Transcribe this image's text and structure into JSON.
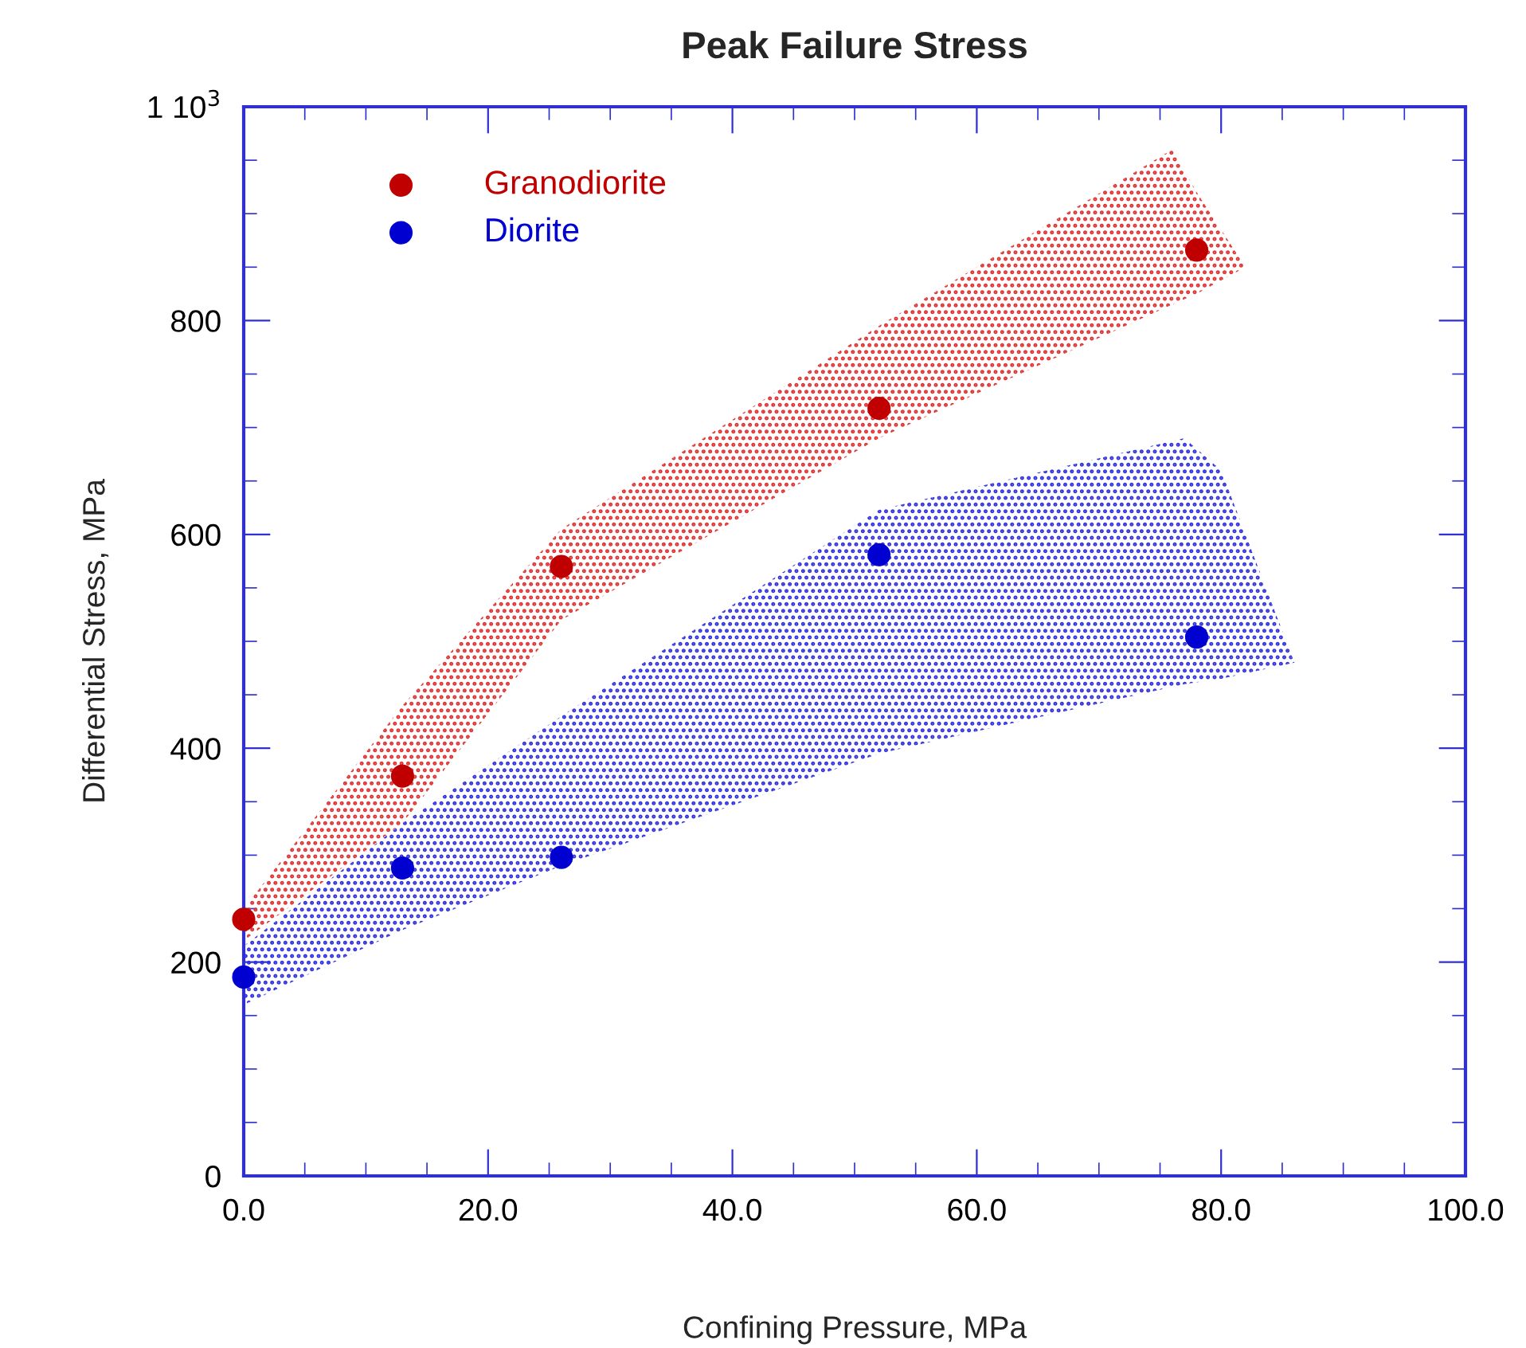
{
  "chart_data": {
    "type": "scatter",
    "title": "Peak Failure Stress",
    "xlabel": "Confining Pressure, MPa",
    "ylabel": "Differential Stress, MPa",
    "xlim": [
      0,
      100
    ],
    "xticks": [
      {
        "value": 0,
        "label": "0.0"
      },
      {
        "value": 20,
        "label": "20.0"
      },
      {
        "value": 40,
        "label": "40.0"
      },
      {
        "value": 60,
        "label": "60.0"
      },
      {
        "value": 80,
        "label": "80.0"
      },
      {
        "value": 100,
        "label": "100.0"
      }
    ],
    "ylim": [
      0,
      1000
    ],
    "yticks": [
      0,
      200,
      400,
      600,
      800,
      {
        "value": 1000,
        "label": "1 10$^{3}$"
      }
    ],
    "grid": false,
    "legend": "top left",
    "series": [
      {
        "type": "area",
        "color": "#e03030",
        "x": [
          0,
          13,
          26,
          52,
          76,
          78,
          82
        ],
        "values": [
          null,
          null,
          null,
          null,
          null,
          null,
          null
        ],
        "upper": [
          250,
          440,
          605,
          795,
          960,
          920,
          850
        ],
        "lower": [
          220,
          330,
          520,
          690,
          815,
          825,
          850
        ]
      },
      {
        "type": "area",
        "color": "#3030e0",
        "x": [
          0,
          13,
          26,
          52,
          77,
          80,
          86
        ],
        "values": [
          null,
          null,
          null,
          null,
          null,
          null,
          null
        ],
        "upper": [
          215,
          330,
          430,
          623,
          690,
          660,
          480
        ],
        "lower": [
          160,
          230,
          290,
          395,
          460,
          465,
          480
        ]
      },
      {
        "type": "scatter",
        "marker": "circle",
        "name": "Granodiorite",
        "color": "#c00000",
        "x": [
          0,
          13,
          26,
          52,
          78
        ],
        "values": [
          240,
          374,
          570,
          718,
          866
        ]
      },
      {
        "type": "scatter",
        "marker": "circle",
        "name": "Diorite",
        "color": "#0000d0",
        "x": [
          0,
          13,
          26,
          52,
          78
        ],
        "values": [
          186,
          288,
          298,
          581,
          504
        ]
      }
    ]
  }
}
